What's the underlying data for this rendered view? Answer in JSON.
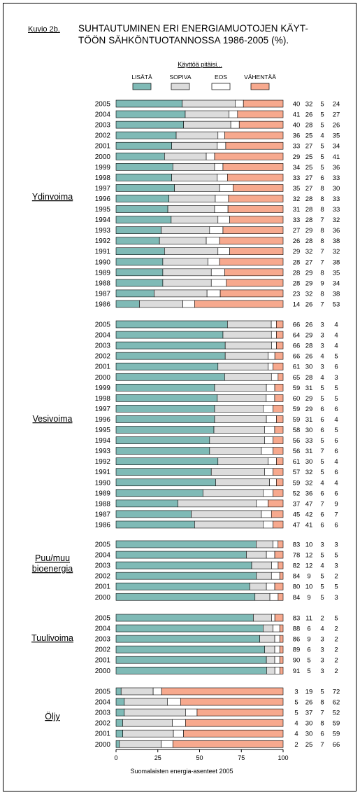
{
  "figure": {
    "label": "Kuvio 2b.",
    "title_line1": "SUHTAUTUMINEN ERI ENERGIAMUOTOJEN KÄYT-",
    "title_line2": "TÖÖN SÄHKÖNTUOTANNOSSA 1986-2005 (%)."
  },
  "colors": {
    "lisata": "#7fbab6",
    "sopiva": "#dcdcdc",
    "eos": "#ffffff",
    "vahentaa": "#f7a98e"
  },
  "chart_data": {
    "type": "bar",
    "stacked": true,
    "orientation": "horizontal",
    "legend_title": "Käyttöä pitäisi...",
    "legend": [
      "LISÄTÄ",
      "SOPIVA",
      "EOS",
      "VÄHENTÄÄ"
    ],
    "legend_position": "top",
    "xlabel": "Suomalaisten energia-asenteet 2005",
    "xlim": [
      0,
      100
    ],
    "xticks": [
      0,
      25,
      50,
      75,
      100
    ],
    "grid": false,
    "groups": [
      {
        "name": "Ydinvoima",
        "rows": [
          {
            "year": "2005",
            "values": [
              40,
              32,
              5,
              24
            ]
          },
          {
            "year": "2004",
            "values": [
              41,
              26,
              5,
              27
            ]
          },
          {
            "year": "2003",
            "values": [
              40,
              28,
              5,
              26
            ]
          },
          {
            "year": "2002",
            "values": [
              36,
              25,
              4,
              35
            ]
          },
          {
            "year": "2001",
            "values": [
              33,
              27,
              5,
              34
            ]
          },
          {
            "year": "2000",
            "values": [
              29,
              25,
              5,
              41
            ]
          },
          {
            "year": "1999",
            "values": [
              34,
              25,
              5,
              36
            ]
          },
          {
            "year": "1998",
            "values": [
              33,
              27,
              6,
              33
            ]
          },
          {
            "year": "1997",
            "values": [
              35,
              27,
              8,
              30
            ]
          },
          {
            "year": "1996",
            "values": [
              32,
              28,
              8,
              33
            ]
          },
          {
            "year": "1995",
            "values": [
              31,
              28,
              8,
              33
            ]
          },
          {
            "year": "1994",
            "values": [
              33,
              28,
              7,
              32
            ]
          },
          {
            "year": "1993",
            "values": [
              27,
              29,
              8,
              36
            ]
          },
          {
            "year": "1992",
            "values": [
              26,
              28,
              8,
              38
            ]
          },
          {
            "year": "1991",
            "values": [
              29,
              32,
              7,
              32
            ]
          },
          {
            "year": "1990",
            "values": [
              28,
              27,
              7,
              38
            ]
          },
          {
            "year": "1989",
            "values": [
              28,
              29,
              8,
              35
            ]
          },
          {
            "year": "1988",
            "values": [
              28,
              29,
              9,
              34
            ]
          },
          {
            "year": "1987",
            "values": [
              23,
              32,
              8,
              38
            ]
          },
          {
            "year": "1986",
            "values": [
              14,
              26,
              7,
              53
            ]
          }
        ]
      },
      {
        "name": "Vesivoima",
        "rows": [
          {
            "year": "2005",
            "values": [
              66,
              26,
              3,
              4
            ]
          },
          {
            "year": "2004",
            "values": [
              64,
              29,
              3,
              4
            ]
          },
          {
            "year": "2003",
            "values": [
              66,
              28,
              3,
              4
            ]
          },
          {
            "year": "2002",
            "values": [
              66,
              26,
              4,
              5
            ]
          },
          {
            "year": "2001",
            "values": [
              61,
              30,
              3,
              6
            ]
          },
          {
            "year": "2000",
            "values": [
              65,
              28,
              4,
              3
            ]
          },
          {
            "year": "1999",
            "values": [
              59,
              31,
              5,
              5
            ]
          },
          {
            "year": "1998",
            "values": [
              60,
              29,
              5,
              5
            ]
          },
          {
            "year": "1997",
            "values": [
              59,
              29,
              6,
              6
            ]
          },
          {
            "year": "1996",
            "values": [
              59,
              31,
              6,
              4
            ]
          },
          {
            "year": "1995",
            "values": [
              58,
              30,
              6,
              5
            ]
          },
          {
            "year": "1994",
            "values": [
              56,
              33,
              5,
              6
            ]
          },
          {
            "year": "1993",
            "values": [
              56,
              31,
              7,
              6
            ]
          },
          {
            "year": "1992",
            "values": [
              61,
              30,
              5,
              4
            ]
          },
          {
            "year": "1991",
            "values": [
              57,
              32,
              5,
              6
            ]
          },
          {
            "year": "1990",
            "values": [
              59,
              32,
              4,
              4
            ]
          },
          {
            "year": "1989",
            "values": [
              52,
              36,
              6,
              6
            ]
          },
          {
            "year": "1988",
            "values": [
              37,
              47,
              7,
              9
            ]
          },
          {
            "year": "1987",
            "values": [
              45,
              42,
              6,
              7
            ]
          },
          {
            "year": "1986",
            "values": [
              47,
              41,
              6,
              6
            ]
          }
        ]
      },
      {
        "name": "Puu/muu bioenergia",
        "label_lines": [
          "Puu/muu",
          "bioenergia"
        ],
        "rows": [
          {
            "year": "2005",
            "values": [
              83,
              10,
              3,
              3
            ]
          },
          {
            "year": "2004",
            "values": [
              78,
              12,
              5,
              5
            ]
          },
          {
            "year": "2003",
            "values": [
              82,
              12,
              4,
              3
            ]
          },
          {
            "year": "2002",
            "values": [
              84,
              9,
              5,
              2
            ]
          },
          {
            "year": "2001",
            "values": [
              80,
              10,
              5,
              5
            ]
          },
          {
            "year": "2000",
            "values": [
              84,
              9,
              5,
              3
            ]
          }
        ]
      },
      {
        "name": "Tuulivoima",
        "rows": [
          {
            "year": "2005",
            "values": [
              83,
              11,
              2,
              5
            ]
          },
          {
            "year": "2004",
            "values": [
              88,
              6,
              4,
              2
            ]
          },
          {
            "year": "2003",
            "values": [
              86,
              9,
              3,
              2
            ]
          },
          {
            "year": "2002",
            "values": [
              89,
              6,
              3,
              2
            ]
          },
          {
            "year": "2001",
            "values": [
              90,
              5,
              3,
              2
            ]
          },
          {
            "year": "2000",
            "values": [
              91,
              5,
              3,
              2
            ]
          }
        ]
      },
      {
        "name": "Öljy",
        "rows": [
          {
            "year": "2005",
            "values": [
              3,
              19,
              5,
              72
            ]
          },
          {
            "year": "2004",
            "values": [
              5,
              26,
              8,
              62
            ]
          },
          {
            "year": "2003",
            "values": [
              5,
              37,
              7,
              52
            ]
          },
          {
            "year": "2002",
            "values": [
              4,
              30,
              8,
              59
            ]
          },
          {
            "year": "2001",
            "values": [
              4,
              30,
              6,
              59
            ]
          },
          {
            "year": "2000",
            "values": [
              2,
              25,
              7,
              66
            ]
          }
        ]
      }
    ]
  }
}
